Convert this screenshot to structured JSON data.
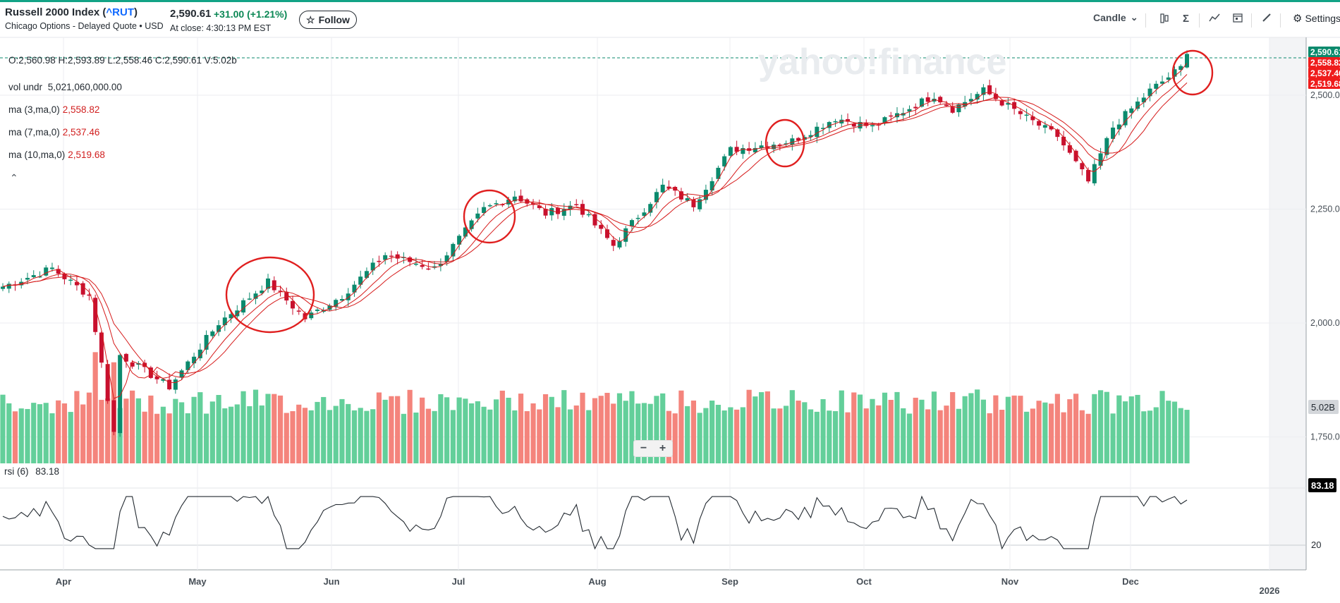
{
  "header": {
    "title": "Russell 2000 Index (",
    "symbol": "^RUT",
    "title_close": ")",
    "subtitle": "Chicago Options - Delayed Quote • USD",
    "price": "2,590.61",
    "change": "+31.00  (+1.21%)",
    "at_close": "At close: 4:30:13 PM EST",
    "follow_label": "Follow",
    "star_icon": "☆"
  },
  "toolbar": {
    "chart_type_label": "Candle",
    "chevron_icon": "⌄",
    "settings_label": "Settings",
    "icons": [
      "compare-icon",
      "indicators-icon",
      "line-tools-icon",
      "calendar-icon",
      "draw-icon",
      "gear-icon"
    ]
  },
  "legend": {
    "ohlc": "O:2,560.98   H:2,593.89   L:2,558.46   C:2,590.61   V:5.02b",
    "vol_label": "vol undr",
    "vol_value": "5,021,060,000.00",
    "ma3_label": "ma (3,ma,0)",
    "ma3_value": "2,558.82",
    "ma7_label": "ma (7,ma,0)",
    "ma7_value": "2,537.46",
    "ma10_label": "ma (10,ma,0)",
    "ma10_value": "2,519.68",
    "collapse_icon": "⌃"
  },
  "watermark": "yahoo!finance",
  "zoom": {
    "minus": "−",
    "plus": "+"
  },
  "rsi": {
    "label": "rsi (6)",
    "value": "83.18",
    "level_label": "20"
  },
  "price_axis": {
    "ticks": [
      "2,500.00",
      "2,250.00",
      "2,000.00",
      "1,750.00"
    ],
    "badges": [
      {
        "text": "2,590.61",
        "color": "#0b8a6d"
      },
      {
        "text": "2,558.82",
        "color": "#ef1c1c"
      },
      {
        "text": "2,537.46",
        "color": "#ef1c1c"
      },
      {
        "text": "2,519.68",
        "color": "#ef1c1c"
      }
    ],
    "volume_badge": "5.02B",
    "rsi_badge": "83.18"
  },
  "colors": {
    "up": "#0b8a6d",
    "down": "#c8102e",
    "vol_up": "#63cf9a",
    "vol_down": "#f4847c",
    "ma": "#d61b1b",
    "highlight": "#e01f1f"
  },
  "chart_data": {
    "type": "candlestick",
    "title": "Russell 2000 Index (^RUT)",
    "x_month_labels": [
      "Apr",
      "May",
      "Jun",
      "Jul",
      "Aug",
      "Sep",
      "Oct",
      "Nov",
      "Dec",
      "2026"
    ],
    "y_ticks": [
      1750,
      2000,
      2250,
      2500
    ],
    "ylim": [
      1720,
      2640
    ],
    "close_anchors": [
      {
        "x": "Mar 20",
        "close": 2080
      },
      {
        "x": "Mar 26",
        "close": 2120
      },
      {
        "x": "Apr 2",
        "close": 2060
      },
      {
        "x": "Apr 8",
        "close": 1760
      },
      {
        "x": "Apr 9",
        "close": 1930
      },
      {
        "x": "Apr 21",
        "close": 1860
      },
      {
        "x": "May 2",
        "close": 2000
      },
      {
        "x": "May 14",
        "close": 2090
      },
      {
        "x": "May 22",
        "close": 2010
      },
      {
        "x": "May 30",
        "close": 2060
      },
      {
        "x": "Jun 10",
        "close": 2150
      },
      {
        "x": "Jun 20",
        "close": 2120
      },
      {
        "x": "Jul 3",
        "close": 2250
      },
      {
        "x": "Jul 10",
        "close": 2280
      },
      {
        "x": "Jul 17",
        "close": 2240
      },
      {
        "x": "Jul 24",
        "close": 2260
      },
      {
        "x": "Aug 1",
        "close": 2170
      },
      {
        "x": "Aug 13",
        "close": 2300
      },
      {
        "x": "Aug 20",
        "close": 2260
      },
      {
        "x": "Aug 28",
        "close": 2380
      },
      {
        "x": "Sep 12",
        "close": 2400
      },
      {
        "x": "Sep 22",
        "close": 2450
      },
      {
        "x": "Oct 1",
        "close": 2430
      },
      {
        "x": "Oct 15",
        "close": 2500
      },
      {
        "x": "Oct 20",
        "close": 2470
      },
      {
        "x": "Oct 27",
        "close": 2510
      },
      {
        "x": "Nov 6",
        "close": 2450
      },
      {
        "x": "Nov 13",
        "close": 2410
      },
      {
        "x": "Nov 20",
        "close": 2310
      },
      {
        "x": "Nov 26",
        "close": 2430
      },
      {
        "x": "Dec 4",
        "close": 2510
      },
      {
        "x": "Dec 11",
        "close": 2560
      },
      {
        "x": "Dec 12",
        "close": 2590.61
      }
    ],
    "volume_last": "5.02B",
    "rsi_last": 83.18,
    "annotations": [
      "red circle around mid-May rally",
      "red circle around early July",
      "red circle around mid September",
      "red circle around latest December candle"
    ]
  }
}
